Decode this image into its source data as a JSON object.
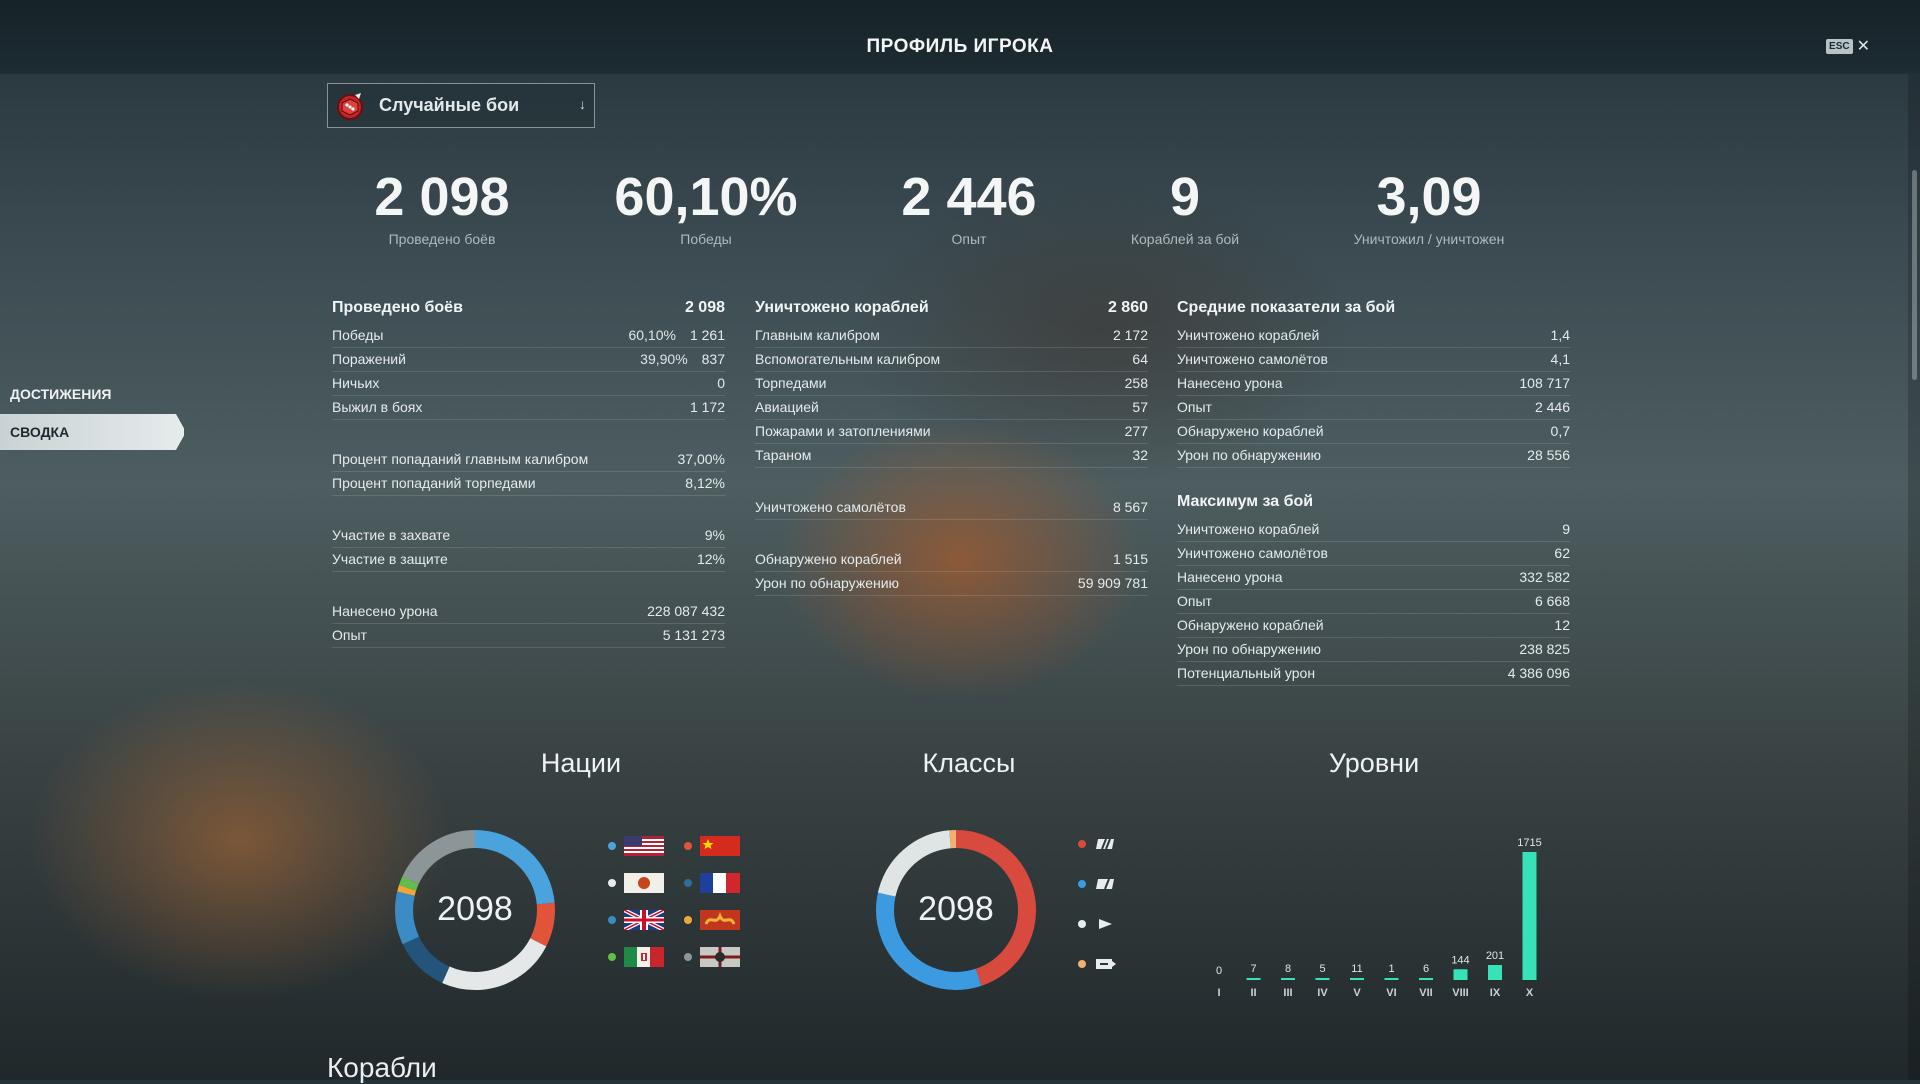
{
  "header": {
    "title": "ПРОФИЛЬ ИГРОКА",
    "esc_label": "ESC",
    "close_glyph": "✕"
  },
  "side_nav": [
    {
      "label": "ДОСТИЖЕНИЯ",
      "active": false
    },
    {
      "label": "СВОДКА",
      "active": true
    }
  ],
  "mode_select": {
    "label": "Случайные бои",
    "icon": "random-battle-icon",
    "chevron": "↓"
  },
  "summary": [
    {
      "value": "2 098",
      "caption": "Проведено боёв"
    },
    {
      "value": "60,10%",
      "caption": "Победы"
    },
    {
      "value": "2 446",
      "caption": "Опыт"
    },
    {
      "value": "9",
      "caption": "Кораблей за бой"
    },
    {
      "value": "3,09",
      "caption": "Уничтожил / уничтожен"
    }
  ],
  "battles": {
    "title": "Проведено боёв",
    "total": "2 098",
    "rows": [
      {
        "label": "Победы",
        "pct": "60,10%",
        "value": "1 261"
      },
      {
        "label": "Поражений",
        "pct": "39,90%",
        "value": "837"
      },
      {
        "label": "Ничьих",
        "pct": "",
        "value": "0"
      },
      {
        "label": "Выжил в боях",
        "pct": "",
        "value": "1 172"
      }
    ],
    "accuracy": [
      {
        "label": "Процент попаданий главным калибром",
        "value": "37,00%"
      },
      {
        "label": "Процент попаданий торпедами",
        "value": "8,12%"
      }
    ],
    "base": [
      {
        "label": "Участие в захвате",
        "value": "9%"
      },
      {
        "label": "Участие в защите",
        "value": "12%"
      }
    ],
    "totals": [
      {
        "label": "Нанесено урона",
        "value": "228 087 432"
      },
      {
        "label": "Опыт",
        "value": "5 131 273"
      }
    ]
  },
  "destroyed": {
    "title": "Уничтожено кораблей",
    "total": "2 860",
    "rows": [
      {
        "label": "Главным калибром",
        "value": "2 172"
      },
      {
        "label": "Вспомогательным калибром",
        "value": "64"
      },
      {
        "label": "Торпедами",
        "value": "258"
      },
      {
        "label": "Авиацией",
        "value": "57"
      },
      {
        "label": "Пожарами и затоплениями",
        "value": "277"
      },
      {
        "label": "Тараном",
        "value": "32"
      }
    ],
    "planes": [
      {
        "label": "Уничтожено самолётов",
        "value": "8 567"
      }
    ],
    "spotting": [
      {
        "label": "Обнаружено кораблей",
        "value": "1 515"
      },
      {
        "label": "Урон по обнаружению",
        "value": "59 909 781"
      }
    ]
  },
  "average": {
    "title": "Средние показатели за бой",
    "rows": [
      {
        "label": "Уничтожено кораблей",
        "value": "1,4"
      },
      {
        "label": "Уничтожено самолётов",
        "value": "4,1"
      },
      {
        "label": "Нанесено урона",
        "value": "108 717"
      },
      {
        "label": "Опыт",
        "value": "2 446"
      },
      {
        "label": "Обнаружено кораблей",
        "value": "0,7"
      },
      {
        "label": "Урон по обнаружению",
        "value": "28 556"
      }
    ]
  },
  "maximum": {
    "title": "Максимум за бой",
    "rows": [
      {
        "label": "Уничтожено кораблей",
        "value": "9"
      },
      {
        "label": "Уничтожено самолётов",
        "value": "62"
      },
      {
        "label": "Нанесено урона",
        "value": "332 582"
      },
      {
        "label": "Опыт",
        "value": "6 668"
      },
      {
        "label": "Обнаружено кораблей",
        "value": "12"
      },
      {
        "label": "Урон по обнаружению",
        "value": "238 825"
      },
      {
        "label": "Потенциальный урон",
        "value": "4 386 096"
      }
    ]
  },
  "nations": {
    "title": "Нации",
    "total": "2098",
    "legend": [
      {
        "flag": "usa-flag-icon",
        "color": "#4aa3dc"
      },
      {
        "flag": "china-flag-icon",
        "color": "#e2543a"
      },
      {
        "flag": "japan-flag-icon",
        "color": "#e8ecec"
      },
      {
        "flag": "france-flag-icon",
        "color": "#2d6e99"
      },
      {
        "flag": "uk-flag-icon",
        "color": "#3b8cc4"
      },
      {
        "flag": "pan-asia-flag-icon",
        "color": "#f0a53a"
      },
      {
        "flag": "italy-flag-icon",
        "color": "#5fbf4a"
      },
      {
        "flag": "germany-flag-icon",
        "color": "#8c9598"
      }
    ]
  },
  "classes": {
    "title": "Классы",
    "total": "2098",
    "legend": [
      {
        "icon": "battleship-icon",
        "color": "#d94a3e"
      },
      {
        "icon": "cruiser-icon",
        "color": "#3c9be0"
      },
      {
        "icon": "destroyer-icon",
        "color": "#e8ecec"
      },
      {
        "icon": "carrier-icon",
        "color": "#f0b070"
      }
    ]
  },
  "chart_data": {
    "type": "bar",
    "title": "Уровни",
    "categories": [
      "I",
      "II",
      "III",
      "IV",
      "V",
      "VI",
      "VII",
      "VIII",
      "IX",
      "X"
    ],
    "values": [
      0,
      7,
      8,
      5,
      11,
      1,
      6,
      144,
      201,
      1715
    ],
    "bar_color": "#38e2b8"
  },
  "ships_title": "Корабли"
}
